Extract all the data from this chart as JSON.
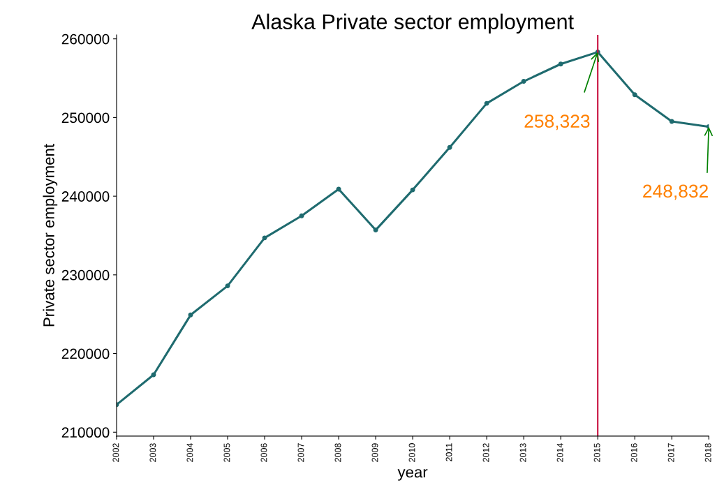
{
  "chart_data": {
    "type": "line",
    "title": "Alaska Private sector employment",
    "xlabel": "year",
    "ylabel": "Private sector employment",
    "x": [
      2002,
      2003,
      2004,
      2005,
      2006,
      2007,
      2008,
      2009,
      2010,
      2011,
      2012,
      2013,
      2014,
      2015,
      2016,
      2017,
      2018
    ],
    "series": [
      {
        "color": "#1f6b6f",
        "values": [
          213500,
          217300,
          224900,
          228600,
          234700,
          237500,
          240900,
          235700,
          240800,
          246200,
          251800,
          254600,
          256800,
          258323,
          252900,
          249500,
          248832
        ]
      }
    ],
    "xlim": [
      2002,
      2018
    ],
    "xticks": [
      2002,
      2003,
      2004,
      2005,
      2006,
      2007,
      2008,
      2009,
      2010,
      2011,
      2012,
      2013,
      2014,
      2015,
      2016,
      2017,
      2018
    ],
    "ylim": [
      209500,
      260500
    ],
    "yticks": [
      210000,
      220000,
      230000,
      240000,
      250000,
      260000
    ],
    "ref_lines": [
      {
        "axis": "x",
        "value": 2015,
        "color": "#c8103e"
      }
    ],
    "annotations": [
      {
        "text": "258,323",
        "x": 2015,
        "y": 258323
      },
      {
        "text": "248,832",
        "x": 2018,
        "y": 248832
      }
    ],
    "grid": false,
    "marker": "circle",
    "line_style": "solid"
  }
}
